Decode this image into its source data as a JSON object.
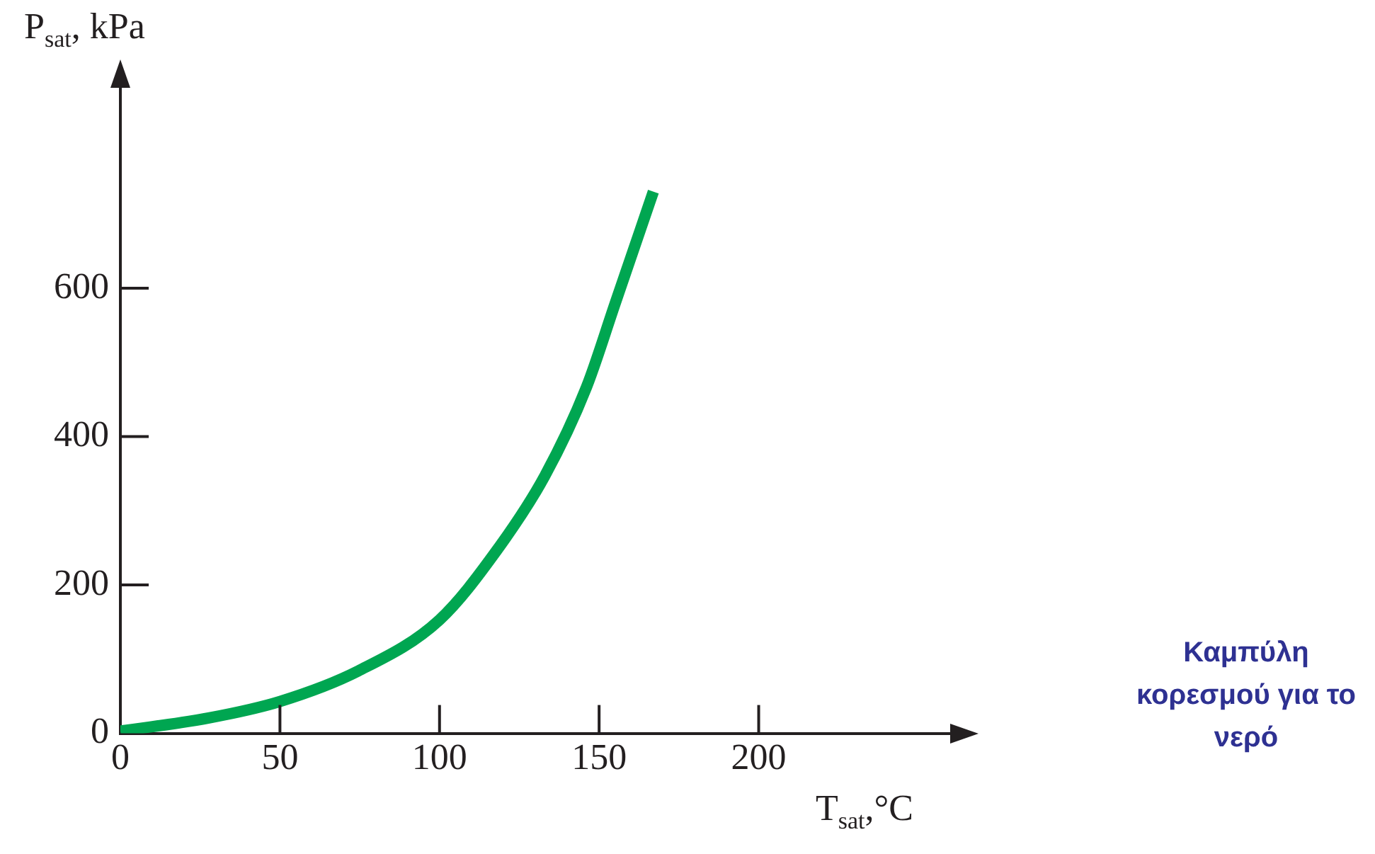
{
  "chart_data": {
    "type": "line",
    "xlabel": "T$_{sat}$,°C",
    "ylabel": "P$_{sat}$, kPa",
    "x": [
      0,
      28,
      50,
      74.5,
      100,
      118,
      133,
      146,
      155,
      167
    ],
    "series": [
      {
        "color": "#00a651",
        "values": [
          3,
          21,
          43,
          84,
          153,
          247,
          347,
          466,
          579,
          730
        ]
      }
    ],
    "xlim": [
      0,
      260
    ],
    "ylim": [
      0,
      870
    ],
    "xticks": [
      0,
      50,
      100,
      150,
      200
    ],
    "yticks": [
      0,
      200,
      400,
      600
    ],
    "grid": false,
    "legend": false,
    "marker": "none",
    "line_style": "solid",
    "annotations": [
      "Καμπύλη κορεσμού για το νερό"
    ]
  }
}
